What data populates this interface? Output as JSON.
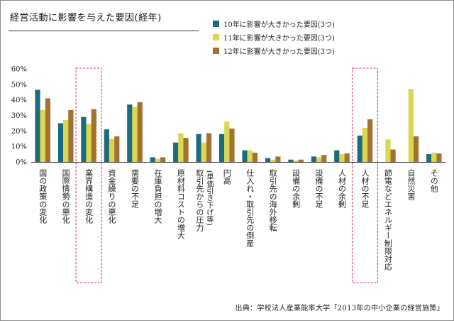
{
  "title": "経営活動に影響を与えた要因(経年)",
  "source": "出典：学校法人産業能率大学「2013年の中小企業の経営施策」",
  "chart_data": {
    "type": "bar",
    "y_ticks": [
      "0%",
      "10%",
      "20%",
      "30%",
      "40%",
      "50%",
      "60%"
    ],
    "ylim": [
      0,
      60
    ],
    "y_unit": "%",
    "categories": [
      "国の政策の変化",
      "国際情勢の悪化",
      "業界構造の変化",
      "資金繰りの悪化",
      "需要の不足",
      "在庫負担の増大",
      "原材料コストの増大",
      "取引先からの圧力",
      "円高",
      "仕入れ・取引先の倒産",
      "取引先の海外移転",
      "設備の余剰",
      "設備の不足",
      "人材の余剰",
      "人材の不足",
      "節電などエネルギー制限対応",
      "自然災害",
      "その他"
    ],
    "category_sublabels": {
      "7": "(単価引き下げ等)"
    },
    "highlighted_categories": [
      "業界構造の変化",
      "人材の不足"
    ],
    "series": [
      {
        "name": "10年に影響が大きかった要因(3つ)",
        "color": "#1f6b7e",
        "values": [
          46.5,
          25,
          29,
          21,
          37,
          3,
          12.5,
          18,
          18,
          7.5,
          2.5,
          1.5,
          3.5,
          7.5,
          17,
          0,
          0,
          5
        ]
      },
      {
        "name": "11年に影響が大きかった要因(3つ)",
        "color": "#d9d84e",
        "values": [
          33.5,
          27,
          24.5,
          15,
          35.5,
          2,
          18.5,
          12.5,
          26,
          7.5,
          1.5,
          1,
          3,
          5,
          22,
          14.5,
          47,
          6
        ]
      },
      {
        "name": "12年に影響が大きかった要因(3つ)",
        "color": "#a47230",
        "values": [
          41,
          33.5,
          34,
          16.5,
          38.5,
          3,
          15.5,
          18.5,
          21.5,
          6,
          3.5,
          1.5,
          4.5,
          5.5,
          27.5,
          8,
          16.5,
          5.5
        ]
      }
    ],
    "grid": false,
    "legend_position": "top-right"
  }
}
